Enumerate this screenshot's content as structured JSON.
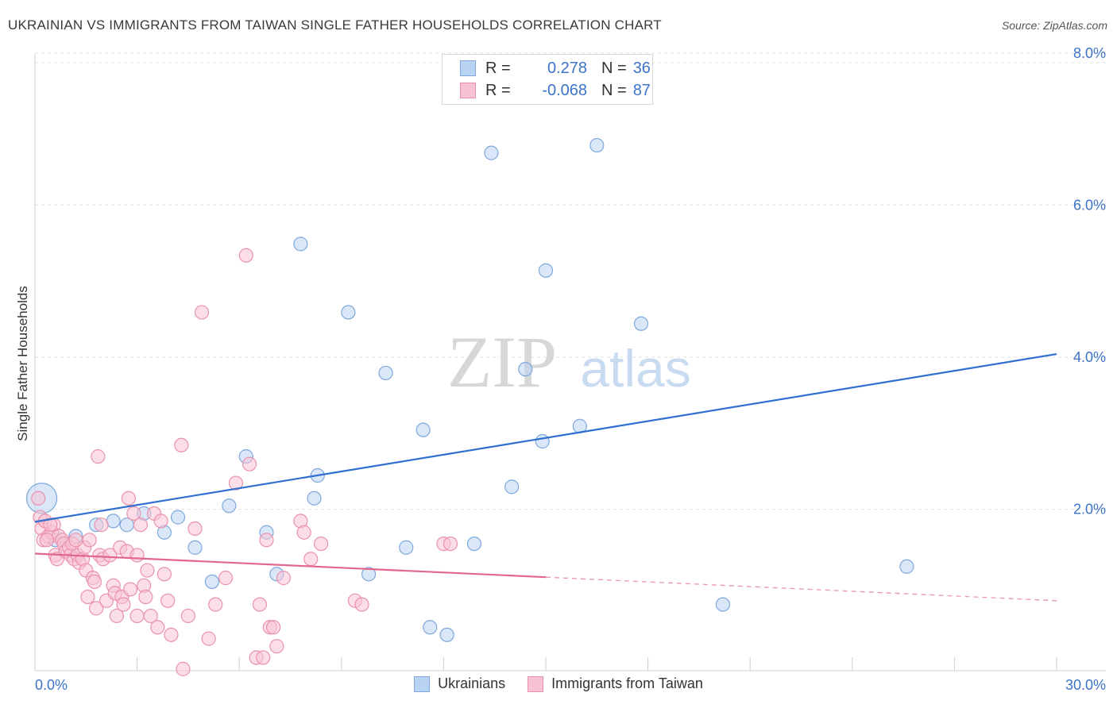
{
  "title": "UKRAINIAN VS IMMIGRANTS FROM TAIWAN SINGLE FATHER HOUSEHOLDS CORRELATION CHART",
  "source": "Source: ZipAtlas.com",
  "watermark": {
    "zip": "ZIP",
    "atlas": "atlas"
  },
  "legend": {
    "rows": [
      {
        "r_label": "R =",
        "r_value": "0.278",
        "n_label": "N =",
        "n_value": "36"
      },
      {
        "r_label": "R =",
        "r_value": "-0.068",
        "n_label": "N =",
        "n_value": "87"
      }
    ]
  },
  "bottom_legend": [
    "Ukrainians",
    "Immigrants from Taiwan"
  ],
  "colors": {
    "blue_fill": "#b9d3f3",
    "blue_stroke": "#7ea8dc",
    "blue_line": "#2f6fcf",
    "pink_fill": "#f7c3d3",
    "pink_stroke": "#ea92ad",
    "pink_line": "#e2668f",
    "tick_text": "#3d73c7",
    "grid": "#e2e2e2"
  },
  "chart_data": {
    "type": "scatter",
    "title": "UKRAINIAN VS IMMIGRANTS FROM TAIWAN SINGLE FATHER HOUSEHOLDS CORRELATION CHART",
    "xlabel": "",
    "ylabel": "Single Father Households",
    "xlim": [
      0,
      30
    ],
    "ylim": [
      0,
      8.0
    ],
    "x_tick_labels": [
      "0.0%",
      "30.0%"
    ],
    "y_tick_labels": [
      "2.0%",
      "4.0%",
      "6.0%",
      "8.0%"
    ],
    "y_tick_values": [
      2.0,
      4.0,
      6.0,
      8.0
    ],
    "x_minor_ticks": [
      0,
      3,
      6,
      9,
      12,
      15,
      18,
      21,
      24,
      27,
      30
    ],
    "grid": true,
    "series": [
      {
        "name": "Ukrainians",
        "R": 0.278,
        "N": 36,
        "trend": {
          "x": [
            0,
            30
          ],
          "y": [
            2.14,
            4.35
          ],
          "dashed_from": null
        },
        "points": [
          {
            "x": 0.2,
            "y": 2.45,
            "big": true
          },
          {
            "x": 1.2,
            "y": 1.95
          },
          {
            "x": 1.8,
            "y": 2.1
          },
          {
            "x": 2.3,
            "y": 2.15
          },
          {
            "x": 2.7,
            "y": 2.1
          },
          {
            "x": 3.2,
            "y": 2.25
          },
          {
            "x": 3.8,
            "y": 2.0
          },
          {
            "x": 4.2,
            "y": 2.2
          },
          {
            "x": 4.7,
            "y": 1.8
          },
          {
            "x": 5.2,
            "y": 1.35
          },
          {
            "x": 5.7,
            "y": 2.35
          },
          {
            "x": 6.2,
            "y": 3.0
          },
          {
            "x": 6.8,
            "y": 2.0
          },
          {
            "x": 7.1,
            "y": 1.45
          },
          {
            "x": 7.8,
            "y": 5.8
          },
          {
            "x": 8.3,
            "y": 2.75
          },
          {
            "x": 8.2,
            "y": 2.45
          },
          {
            "x": 9.2,
            "y": 4.9
          },
          {
            "x": 9.8,
            "y": 1.45
          },
          {
            "x": 10.3,
            "y": 4.1
          },
          {
            "x": 10.9,
            "y": 1.8
          },
          {
            "x": 11.4,
            "y": 3.35
          },
          {
            "x": 11.6,
            "y": 0.75
          },
          {
            "x": 12.1,
            "y": 0.65
          },
          {
            "x": 12.9,
            "y": 1.85
          },
          {
            "x": 13.4,
            "y": 7.0
          },
          {
            "x": 14.0,
            "y": 2.6
          },
          {
            "x": 14.4,
            "y": 4.15
          },
          {
            "x": 14.9,
            "y": 3.2
          },
          {
            "x": 15.0,
            "y": 5.45
          },
          {
            "x": 16.0,
            "y": 3.4
          },
          {
            "x": 16.5,
            "y": 7.1
          },
          {
            "x": 17.8,
            "y": 4.75
          },
          {
            "x": 20.2,
            "y": 1.05
          },
          {
            "x": 25.6,
            "y": 1.55
          },
          {
            "x": 0.6,
            "y": 1.9
          }
        ]
      },
      {
        "name": "Immigrants from Taiwan",
        "R": -0.068,
        "N": 87,
        "trend": {
          "x": [
            0,
            30
          ],
          "y": [
            1.72,
            1.1
          ],
          "dashed_from": 15
        },
        "points": [
          {
            "x": 0.1,
            "y": 2.45
          },
          {
            "x": 0.15,
            "y": 2.2
          },
          {
            "x": 0.2,
            "y": 2.05
          },
          {
            "x": 0.25,
            "y": 1.9
          },
          {
            "x": 0.3,
            "y": 2.15
          },
          {
            "x": 0.4,
            "y": 1.95
          },
          {
            "x": 0.5,
            "y": 2.0
          },
          {
            "x": 0.55,
            "y": 2.1
          },
          {
            "x": 0.6,
            "y": 1.7
          },
          {
            "x": 0.65,
            "y": 1.65
          },
          {
            "x": 0.7,
            "y": 1.95
          },
          {
            "x": 0.8,
            "y": 1.9
          },
          {
            "x": 0.85,
            "y": 1.85
          },
          {
            "x": 0.9,
            "y": 1.75
          },
          {
            "x": 1.0,
            "y": 1.8
          },
          {
            "x": 1.05,
            "y": 1.7
          },
          {
            "x": 1.1,
            "y": 1.85
          },
          {
            "x": 1.15,
            "y": 1.65
          },
          {
            "x": 1.25,
            "y": 1.7
          },
          {
            "x": 1.3,
            "y": 1.6
          },
          {
            "x": 1.4,
            "y": 1.65
          },
          {
            "x": 1.45,
            "y": 1.8
          },
          {
            "x": 1.5,
            "y": 1.5
          },
          {
            "x": 1.55,
            "y": 1.15
          },
          {
            "x": 1.6,
            "y": 1.9
          },
          {
            "x": 1.7,
            "y": 1.4
          },
          {
            "x": 1.75,
            "y": 1.35
          },
          {
            "x": 1.8,
            "y": 1.0
          },
          {
            "x": 1.85,
            "y": 3.0
          },
          {
            "x": 1.9,
            "y": 1.7
          },
          {
            "x": 1.95,
            "y": 2.1
          },
          {
            "x": 2.0,
            "y": 1.65
          },
          {
            "x": 2.1,
            "y": 1.1
          },
          {
            "x": 2.2,
            "y": 1.7
          },
          {
            "x": 2.3,
            "y": 1.3
          },
          {
            "x": 2.35,
            "y": 1.2
          },
          {
            "x": 2.4,
            "y": 0.9
          },
          {
            "x": 2.5,
            "y": 1.8
          },
          {
            "x": 2.55,
            "y": 1.15
          },
          {
            "x": 2.6,
            "y": 1.05
          },
          {
            "x": 2.7,
            "y": 1.75
          },
          {
            "x": 2.75,
            "y": 2.45
          },
          {
            "x": 2.8,
            "y": 1.25
          },
          {
            "x": 2.9,
            "y": 2.25
          },
          {
            "x": 3.0,
            "y": 0.9
          },
          {
            "x": 3.0,
            "y": 1.7
          },
          {
            "x": 3.1,
            "y": 2.1
          },
          {
            "x": 3.2,
            "y": 1.3
          },
          {
            "x": 3.25,
            "y": 1.15
          },
          {
            "x": 3.3,
            "y": 1.5
          },
          {
            "x": 3.4,
            "y": 0.9
          },
          {
            "x": 3.5,
            "y": 2.25
          },
          {
            "x": 3.6,
            "y": 0.75
          },
          {
            "x": 3.7,
            "y": 2.15
          },
          {
            "x": 3.8,
            "y": 1.45
          },
          {
            "x": 3.9,
            "y": 1.1
          },
          {
            "x": 4.0,
            "y": 0.65
          },
          {
            "x": 4.3,
            "y": 3.15
          },
          {
            "x": 4.35,
            "y": 0.2
          },
          {
            "x": 4.5,
            "y": 0.9
          },
          {
            "x": 4.7,
            "y": 2.05
          },
          {
            "x": 4.9,
            "y": 4.9
          },
          {
            "x": 5.1,
            "y": 0.6
          },
          {
            "x": 5.3,
            "y": 1.05
          },
          {
            "x": 5.6,
            "y": 1.4
          },
          {
            "x": 5.9,
            "y": 2.65
          },
          {
            "x": 6.2,
            "y": 5.65
          },
          {
            "x": 6.3,
            "y": 2.9
          },
          {
            "x": 6.5,
            "y": 0.35
          },
          {
            "x": 6.6,
            "y": 1.05
          },
          {
            "x": 6.7,
            "y": 0.35
          },
          {
            "x": 6.8,
            "y": 1.9
          },
          {
            "x": 6.9,
            "y": 0.75
          },
          {
            "x": 7.0,
            "y": 0.75
          },
          {
            "x": 7.1,
            "y": 0.5
          },
          {
            "x": 7.3,
            "y": 1.4
          },
          {
            "x": 7.8,
            "y": 2.15
          },
          {
            "x": 7.9,
            "y": 2.0
          },
          {
            "x": 8.1,
            "y": 1.65
          },
          {
            "x": 8.4,
            "y": 1.85
          },
          {
            "x": 9.4,
            "y": 1.1
          },
          {
            "x": 9.6,
            "y": 1.05
          },
          {
            "x": 12.0,
            "y": 1.85
          },
          {
            "x": 12.2,
            "y": 1.85
          },
          {
            "x": 0.35,
            "y": 1.9
          },
          {
            "x": 0.45,
            "y": 2.1
          },
          {
            "x": 1.2,
            "y": 1.9
          }
        ]
      }
    ]
  }
}
